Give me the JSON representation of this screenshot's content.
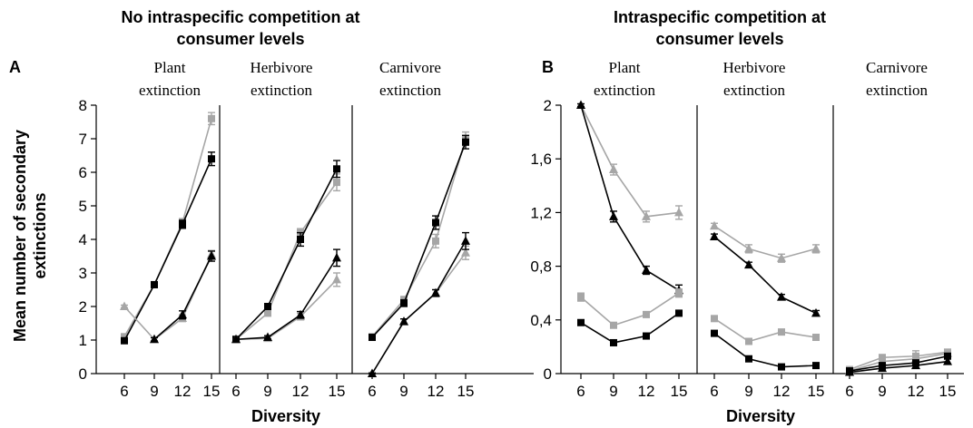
{
  "panel_A": {
    "letter": "A",
    "header_lines": [
      "No intraspecific competition at",
      "consumer levels"
    ]
  },
  "panel_B": {
    "letter": "B",
    "header_lines": [
      "Intraspecific competition at",
      "consumer levels"
    ]
  },
  "subplot_titles": [
    [
      "Plant",
      "extinction"
    ],
    [
      "Herbivore",
      "extinction"
    ],
    [
      "Carnivore",
      "extinction"
    ]
  ],
  "ylabel_lines": [
    "Mean number of secondary",
    "extinctions"
  ],
  "xlabel": "Diversity",
  "colors": {
    "black": "#000000",
    "grey": "#a6a6a6"
  },
  "chart_data": [
    {
      "type": "line",
      "panel": "A",
      "ylim": [
        0,
        8
      ],
      "yticks": [
        "0",
        "1",
        "2",
        "3",
        "4",
        "5",
        "6",
        "7",
        "8"
      ],
      "x": [
        6,
        9,
        12,
        15
      ],
      "xticks": [
        "6",
        "9",
        "12",
        "15"
      ],
      "xlabel": "Diversity",
      "subplots": [
        {
          "title": "Plant extinction",
          "series": [
            {
              "marker": "square",
              "color": "grey",
              "values": [
                1.1,
                2.65,
                4.5,
                7.6
              ],
              "errors": [
                0.05,
                0.08,
                0.12,
                0.18
              ]
            },
            {
              "marker": "square",
              "color": "black",
              "values": [
                0.98,
                2.65,
                4.45,
                6.4
              ],
              "errors": [
                0.05,
                0.08,
                0.12,
                0.2
              ]
            },
            {
              "marker": "triangle",
              "color": "grey",
              "values": [
                2.0,
                1.02,
                1.65,
                3.55
              ],
              "errors": [
                0.04,
                0.05,
                0.1,
                0.12
              ]
            },
            {
              "marker": "triangle",
              "color": "black",
              "values": [
                null,
                1.02,
                1.75,
                3.5
              ],
              "errors": [
                null,
                0.05,
                0.12,
                0.15
              ]
            }
          ]
        },
        {
          "title": "Herbivore extinction",
          "series": [
            {
              "marker": "square",
              "color": "grey",
              "values": [
                1.02,
                1.8,
                4.2,
                5.7
              ],
              "errors": [
                0.04,
                0.08,
                0.12,
                0.25
              ]
            },
            {
              "marker": "square",
              "color": "black",
              "values": [
                1.02,
                2.0,
                4.0,
                6.1
              ],
              "errors": [
                0.04,
                0.08,
                0.2,
                0.25
              ]
            },
            {
              "marker": "triangle",
              "color": "grey",
              "values": [
                1.02,
                1.05,
                1.7,
                2.8
              ],
              "errors": [
                0.03,
                0.05,
                0.1,
                0.2
              ]
            },
            {
              "marker": "triangle",
              "color": "black",
              "values": [
                1.02,
                1.08,
                1.75,
                3.45
              ],
              "errors": [
                0.03,
                0.05,
                0.1,
                0.25
              ]
            }
          ]
        },
        {
          "title": "Carnivore extinction",
          "series": [
            {
              "marker": "square",
              "color": "grey",
              "values": [
                1.1,
                2.2,
                3.95,
                7.0
              ],
              "errors": [
                0.05,
                0.1,
                0.2,
                0.2
              ]
            },
            {
              "marker": "square",
              "color": "black",
              "values": [
                1.08,
                2.1,
                4.5,
                6.9
              ],
              "errors": [
                0.05,
                0.1,
                0.2,
                0.2
              ]
            },
            {
              "marker": "triangle",
              "color": "grey",
              "values": [
                0.0,
                1.55,
                2.4,
                3.6
              ],
              "errors": [
                0.02,
                0.08,
                0.1,
                0.2
              ]
            },
            {
              "marker": "triangle",
              "color": "black",
              "values": [
                0.0,
                1.55,
                2.4,
                3.95
              ],
              "errors": [
                0.02,
                0.08,
                0.1,
                0.25
              ]
            }
          ]
        }
      ]
    },
    {
      "type": "line",
      "panel": "B",
      "ylim": [
        0,
        2
      ],
      "yticks": [
        "0",
        "0,4",
        "0,8",
        "1,2",
        "1,6",
        "2"
      ],
      "x": [
        6,
        9,
        12,
        15
      ],
      "xticks": [
        "6",
        "9",
        "12",
        "15"
      ],
      "xlabel": "Diversity",
      "subplots": [
        {
          "title": "Plant extinction",
          "series": [
            {
              "marker": "triangle",
              "color": "grey",
              "values": [
                2.0,
                1.52,
                1.17,
                1.2
              ],
              "errors": [
                0.01,
                0.04,
                0.04,
                0.05
              ]
            },
            {
              "marker": "triangle",
              "color": "black",
              "values": [
                2.0,
                1.17,
                0.77,
                0.62
              ],
              "errors": [
                0.01,
                0.04,
                0.03,
                0.04
              ]
            },
            {
              "marker": "square",
              "color": "grey",
              "values": [
                0.57,
                0.36,
                0.44,
                0.6
              ],
              "errors": [
                0.03,
                0.02,
                0.02,
                0.03
              ]
            },
            {
              "marker": "square",
              "color": "black",
              "values": [
                0.38,
                0.23,
                0.28,
                0.45
              ],
              "errors": [
                0.02,
                0.02,
                0.02,
                0.02
              ]
            }
          ]
        },
        {
          "title": "Herbivore extinction",
          "series": [
            {
              "marker": "triangle",
              "color": "grey",
              "values": [
                1.1,
                0.93,
                0.86,
                0.93
              ],
              "errors": [
                0.02,
                0.03,
                0.03,
                0.03
              ]
            },
            {
              "marker": "triangle",
              "color": "black",
              "values": [
                1.02,
                0.81,
                0.57,
                0.45
              ],
              "errors": [
                0.02,
                0.02,
                0.02,
                0.02
              ]
            },
            {
              "marker": "square",
              "color": "grey",
              "values": [
                0.41,
                0.24,
                0.31,
                0.27
              ],
              "errors": [
                0.02,
                0.02,
                0.02,
                0.02
              ]
            },
            {
              "marker": "square",
              "color": "black",
              "values": [
                0.3,
                0.11,
                0.05,
                0.06
              ],
              "errors": [
                0.02,
                0.01,
                0.01,
                0.01
              ]
            }
          ]
        },
        {
          "title": "Carnivore extinction",
          "series": [
            {
              "marker": "square",
              "color": "grey",
              "values": [
                0.03,
                0.12,
                0.13,
                0.16
              ],
              "errors": [
                0.01,
                0.02,
                0.04,
                0.02
              ]
            },
            {
              "marker": "triangle",
              "color": "grey",
              "values": [
                0.02,
                0.09,
                0.11,
                0.15
              ],
              "errors": [
                0.01,
                0.02,
                0.03,
                0.02
              ]
            },
            {
              "marker": "square",
              "color": "black",
              "values": [
                0.02,
                0.06,
                0.08,
                0.13
              ],
              "errors": [
                0.01,
                0.02,
                0.02,
                0.02
              ]
            },
            {
              "marker": "triangle",
              "color": "black",
              "values": [
                0.01,
                0.04,
                0.06,
                0.09
              ],
              "errors": [
                0.01,
                0.01,
                0.02,
                0.02
              ]
            }
          ]
        }
      ]
    }
  ]
}
